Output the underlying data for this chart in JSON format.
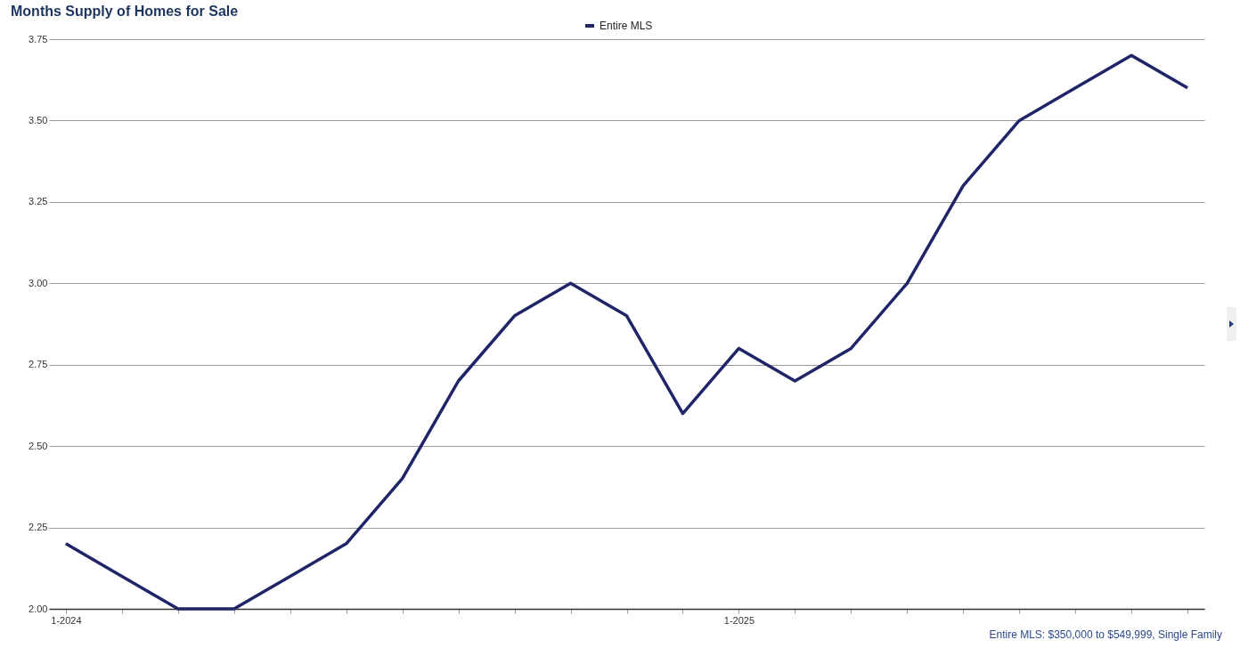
{
  "chart_data": {
    "type": "line",
    "title": "Months Supply of Homes for Sale",
    "categories": [
      "1-2024",
      null,
      null,
      null,
      null,
      null,
      null,
      null,
      null,
      null,
      null,
      null,
      "1-2025",
      null,
      null,
      null,
      null,
      null,
      null,
      null,
      null
    ],
    "series": [
      {
        "name": "Entire MLS",
        "color": "#202468",
        "values": [
          2.2,
          2.1,
          2.0,
          2.0,
          2.1,
          2.2,
          2.4,
          2.7,
          2.9,
          3.0,
          2.9,
          2.6,
          2.8,
          2.7,
          2.8,
          3.0,
          3.3,
          3.5,
          3.6,
          3.7,
          3.6
        ]
      }
    ],
    "ylim": [
      2,
      3.75
    ],
    "yticks": [
      {
        "value": 2,
        "label": "2.00"
      },
      {
        "value": 2.25,
        "label": "2.25"
      },
      {
        "value": 2.5,
        "label": "2.50"
      },
      {
        "value": 2.75,
        "label": "2.75"
      },
      {
        "value": 3,
        "label": "3.00"
      },
      {
        "value": 3.25,
        "label": "3.25"
      },
      {
        "value": 3.5,
        "label": "3.50"
      },
      {
        "value": 3.75,
        "label": "3.75"
      }
    ],
    "grid": "y",
    "legend": "top",
    "marker": "none",
    "line_style": "solid",
    "annotations": [
      "Entire MLS: $350,000 to $549,999, Single Family"
    ]
  }
}
